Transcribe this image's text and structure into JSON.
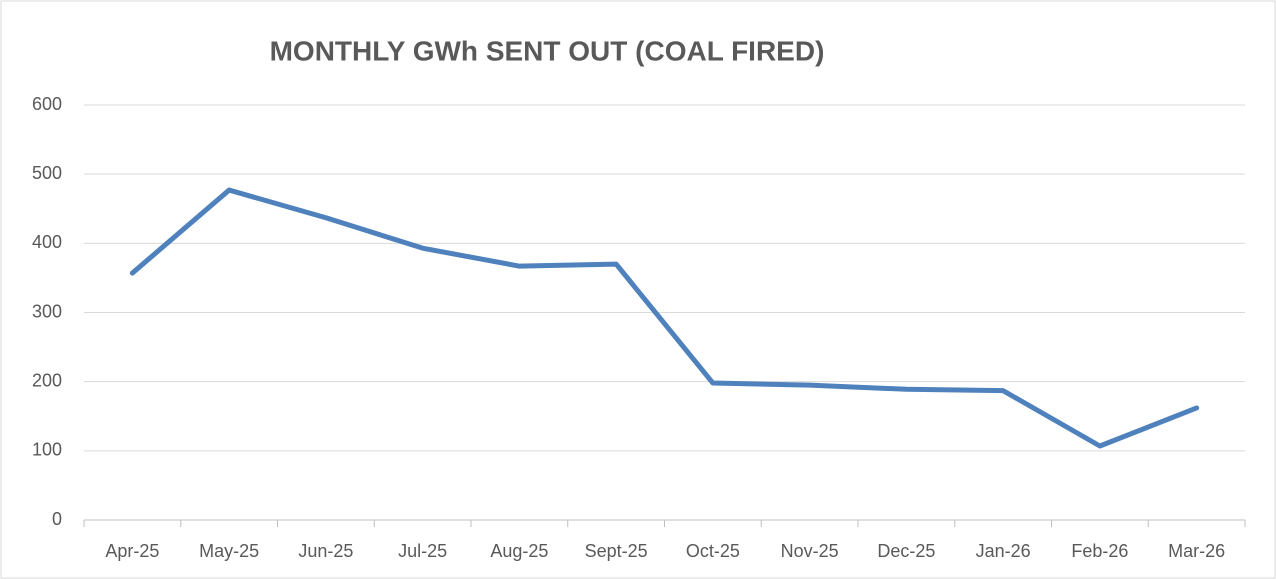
{
  "chart_data": {
    "type": "line",
    "title": "MONTHLY GWh SENT OUT (COAL FIRED)",
    "categories": [
      "Apr-25",
      "May-25",
      "Jun-25",
      "Jul-25",
      "Aug-25",
      "Sept-25",
      "Oct-25",
      "Nov-25",
      "Dec-25",
      "Jan-26",
      "Feb-26",
      "Mar-26"
    ],
    "values": [
      357,
      477,
      437,
      393,
      367,
      370,
      198,
      195,
      189,
      187,
      107,
      162
    ],
    "color": "#4f81bd",
    "ylim": [
      0,
      600
    ],
    "yticks": [
      0,
      100,
      200,
      300,
      400,
      500,
      600
    ],
    "grid": true
  }
}
